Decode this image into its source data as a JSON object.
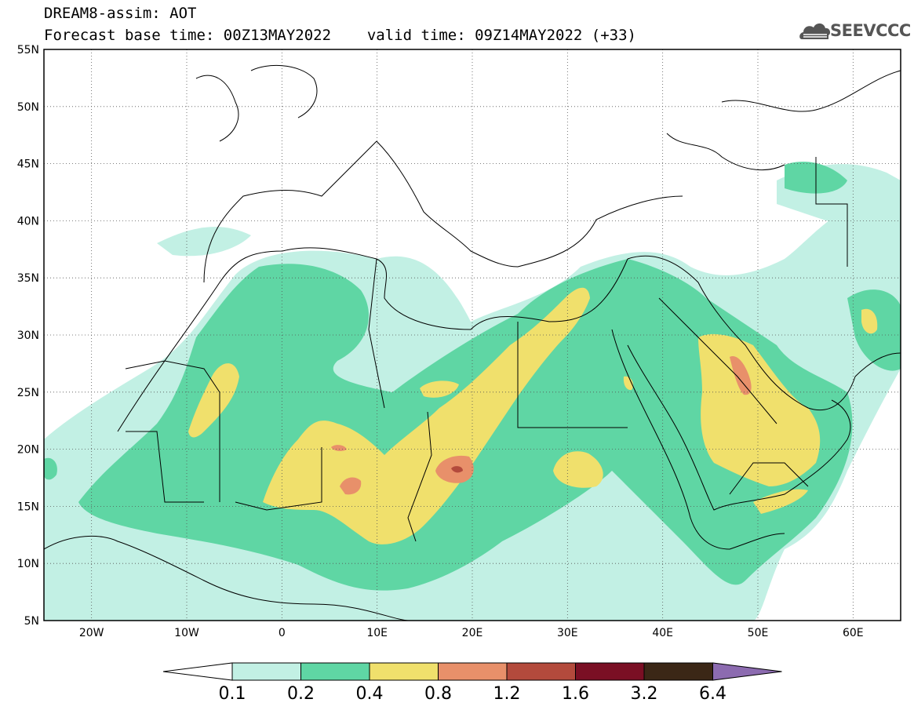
{
  "header": {
    "line1": "DREAM8-assim: AOT",
    "forecast_base_label": "Forecast base time: 00Z13MAY2022",
    "valid_time_label": "valid time: 09Z14MAY2022 (+33)"
  },
  "logo": {
    "text": "SEEVCCC",
    "icon": "cloud-logo-icon"
  },
  "map": {
    "projection": "cylindrical equidistant",
    "lon_range": [
      -25,
      65
    ],
    "lat_range": [
      5,
      55
    ],
    "lat_labels": [
      "55N",
      "50N",
      "45N",
      "40N",
      "35N",
      "30N",
      "25N",
      "20N",
      "15N",
      "10N",
      "5N"
    ],
    "lon_labels": [
      "20W",
      "10W",
      "0",
      "10E",
      "20E",
      "30E",
      "40E",
      "50E",
      "60E"
    ],
    "grid": "dotted",
    "background_color": "#ffffff",
    "coast_color": "#000000"
  },
  "colorbar": {
    "labels": [
      "0.1",
      "0.2",
      "0.4",
      "0.8",
      "1.2",
      "1.6",
      "3.2",
      "6.4"
    ],
    "colors": [
      "#c2f0e4",
      "#5fd6a4",
      "#f0e06c",
      "#e8906a",
      "#b34a3c",
      "#7a0f24",
      "#3b2716",
      "#8c6bb0"
    ],
    "under_color": "#ffffff",
    "over_color": "#8c6bb0"
  }
}
